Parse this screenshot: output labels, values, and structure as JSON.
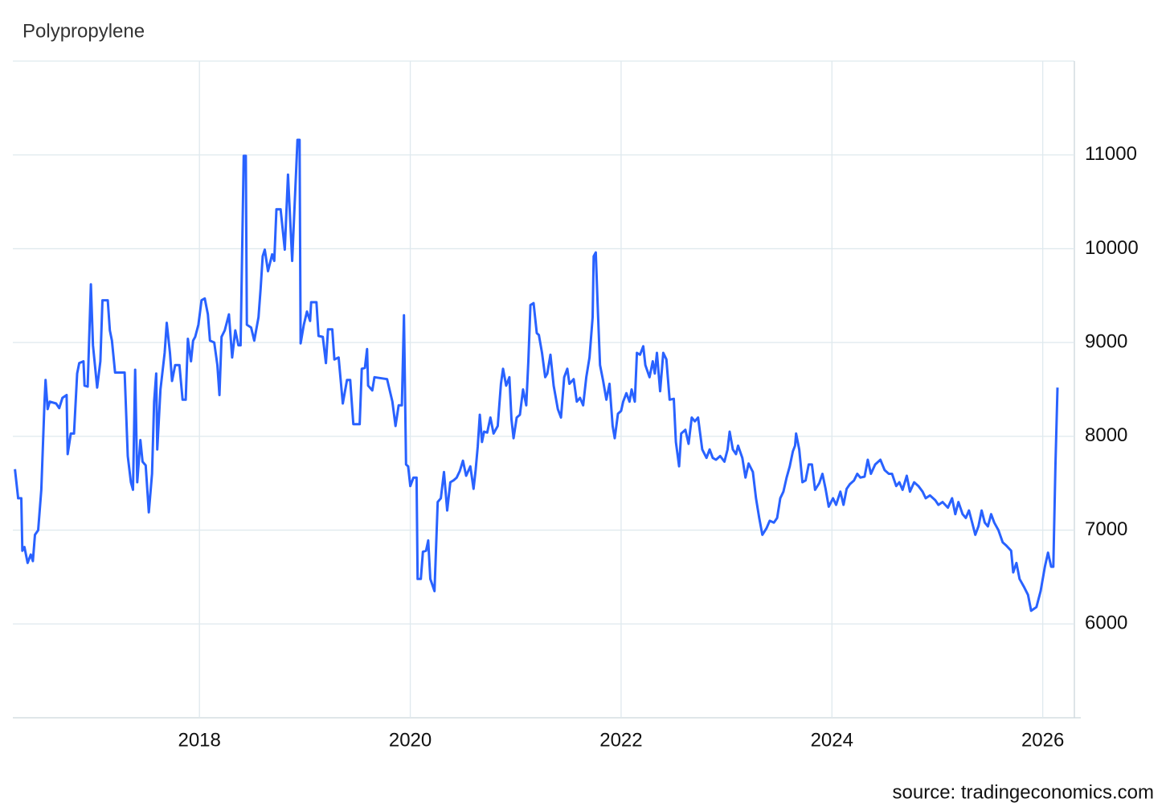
{
  "chart_data": {
    "type": "line",
    "title": "Polypropylene",
    "source": "source: tradingeconomics.com",
    "x": [
      2016.25,
      2016.28,
      2016.31,
      2016.32,
      2016.34,
      2016.37,
      2016.4,
      2016.42,
      2016.44,
      2016.47,
      2016.5,
      2016.53,
      2016.54,
      2016.56,
      2016.58,
      2016.64,
      2016.67,
      2016.7,
      2016.74,
      2016.75,
      2016.78,
      2016.81,
      2016.84,
      2016.86,
      2016.9,
      2016.91,
      2016.94,
      2016.97,
      2016.99,
      2017.03,
      2017.06,
      2017.08,
      2017.13,
      2017.15,
      2017.17,
      2017.2,
      2017.29,
      2017.32,
      2017.35,
      2017.37,
      2017.39,
      2017.41,
      2017.44,
      2017.46,
      2017.49,
      2017.52,
      2017.55,
      2017.57,
      2017.59,
      2017.6,
      2017.63,
      2017.67,
      2017.69,
      2017.72,
      2017.74,
      2017.77,
      2017.81,
      2017.84,
      2017.87,
      2017.89,
      2017.92,
      2017.94,
      2017.96,
      2017.99,
      2018.02,
      2018.05,
      2018.08,
      2018.1,
      2018.14,
      2018.17,
      2018.19,
      2018.21,
      2018.24,
      2018.28,
      2018.31,
      2018.34,
      2018.37,
      2018.39,
      2018.42,
      2018.44,
      2018.45,
      2018.49,
      2018.52,
      2018.56,
      2018.58,
      2018.6,
      2018.62,
      2018.65,
      2018.69,
      2018.71,
      2018.73,
      2018.77,
      2018.81,
      2018.84,
      2018.88,
      2018.93,
      2018.95,
      2018.96,
      2018.99,
      2019.02,
      2019.05,
      2019.06,
      2019.11,
      2019.13,
      2019.17,
      2019.2,
      2019.22,
      2019.26,
      2019.28,
      2019.32,
      2019.36,
      2019.4,
      2019.43,
      2019.46,
      2019.52,
      2019.54,
      2019.57,
      2019.59,
      2019.6,
      2019.64,
      2019.66,
      2019.78,
      2019.83,
      2019.86,
      2019.89,
      2019.92,
      2019.94,
      2019.96,
      2019.98,
      2020.0,
      2020.03,
      2020.06,
      2020.07,
      2020.1,
      2020.12,
      2020.15,
      2020.17,
      2020.19,
      2020.23,
      2020.26,
      2020.29,
      2020.32,
      2020.35,
      2020.38,
      2020.41,
      2020.44,
      2020.47,
      2020.5,
      2020.53,
      2020.57,
      2020.6,
      2020.62,
      2020.64,
      2020.66,
      2020.68,
      2020.7,
      2020.73,
      2020.76,
      2020.79,
      2020.83,
      2020.86,
      2020.88,
      2020.91,
      2020.94,
      2020.96,
      2020.98,
      2021.01,
      2021.04,
      2021.07,
      2021.1,
      2021.12,
      2021.14,
      2021.17,
      2021.2,
      2021.22,
      2021.25,
      2021.28,
      2021.3,
      2021.33,
      2021.36,
      2021.4,
      2021.43,
      2021.46,
      2021.49,
      2021.51,
      2021.55,
      2021.58,
      2021.61,
      2021.64,
      2021.67,
      2021.7,
      2021.73,
      2021.74,
      2021.76,
      2021.78,
      2021.8,
      2021.83,
      2021.86,
      2021.89,
      2021.92,
      2021.94,
      2021.97,
      2022.0,
      2022.02,
      2022.05,
      2022.08,
      2022.1,
      2022.13,
      2022.15,
      2022.18,
      2022.21,
      2022.23,
      2022.27,
      2022.3,
      2022.32,
      2022.34,
      2022.37,
      2022.4,
      2022.43,
      2022.46,
      2022.5,
      2022.52,
      2022.55,
      2022.57,
      2022.61,
      2022.64,
      2022.67,
      2022.7,
      2022.73,
      2022.77,
      2022.81,
      2022.84,
      2022.87,
      2022.9,
      2022.94,
      2022.98,
      2023.01,
      2023.03,
      2023.06,
      2023.09,
      2023.11,
      2023.15,
      2023.18,
      2023.21,
      2023.25,
      2023.28,
      2023.31,
      2023.34,
      2023.38,
      2023.41,
      2023.45,
      2023.48,
      2023.51,
      2023.54,
      2023.57,
      2023.6,
      2023.63,
      2023.65,
      2023.66,
      2023.69,
      2023.72,
      2023.75,
      2023.78,
      2023.81,
      2023.84,
      2023.88,
      2023.91,
      2023.94,
      2023.97,
      2024.01,
      2024.04,
      2024.08,
      2024.11,
      2024.14,
      2024.17,
      2024.21,
      2024.24,
      2024.27,
      2024.31,
      2024.34,
      2024.37,
      2024.41,
      2024.46,
      2024.5,
      2024.54,
      2024.57,
      2024.61,
      2024.64,
      2024.67,
      2024.71,
      2024.74,
      2024.78,
      2024.82,
      2024.86,
      2024.89,
      2024.93,
      2024.98,
      2025.01,
      2025.05,
      2025.1,
      2025.14,
      2025.17,
      2025.2,
      2025.24,
      2025.27,
      2025.3,
      2025.33,
      2025.36,
      2025.39,
      2025.42,
      2025.45,
      2025.48,
      2025.51,
      2025.54,
      2025.58,
      2025.62,
      2025.65,
      2025.7,
      2025.72,
      2025.75,
      2025.78,
      2025.82,
      2025.86,
      2025.89,
      2025.94,
      2025.98,
      2026.02,
      2026.05,
      2026.08,
      2026.1,
      2026.12,
      2026.14
    ],
    "series": [
      {
        "color": "#2962ff",
        "values": [
          7650,
          7340,
          7340,
          6780,
          6820,
          6650,
          6740,
          6670,
          6950,
          7000,
          7430,
          8370,
          8600,
          8290,
          8370,
          8350,
          8300,
          8410,
          8440,
          7810,
          8030,
          8030,
          8670,
          8780,
          8800,
          8540,
          8530,
          9620,
          8970,
          8520,
          8800,
          9450,
          9450,
          9130,
          9020,
          8680,
          8680,
          7790,
          7510,
          7430,
          8710,
          7510,
          7960,
          7730,
          7690,
          7190,
          7600,
          8370,
          8670,
          7860,
          8500,
          8890,
          9210,
          8890,
          8590,
          8760,
          8760,
          8390,
          8390,
          9040,
          8800,
          9020,
          9060,
          9190,
          9450,
          9470,
          9300,
          9020,
          9000,
          8760,
          8440,
          9060,
          9130,
          9300,
          8840,
          9130,
          8970,
          8970,
          10990,
          10990,
          9190,
          9160,
          9020,
          9270,
          9570,
          9920,
          9990,
          9760,
          9940,
          9870,
          10420,
          10420,
          9990,
          10790,
          9870,
          11160,
          11160,
          8990,
          9190,
          9330,
          9230,
          9430,
          9430,
          9070,
          9060,
          8780,
          9140,
          9140,
          8820,
          8840,
          8350,
          8600,
          8600,
          8130,
          8130,
          8720,
          8730,
          8930,
          8540,
          8490,
          8630,
          8610,
          8370,
          8110,
          8330,
          8330,
          9290,
          7700,
          7680,
          7470,
          7560,
          7560,
          6480,
          6480,
          6770,
          6780,
          6890,
          6480,
          6350,
          7300,
          7340,
          7620,
          7210,
          7510,
          7530,
          7560,
          7630,
          7740,
          7580,
          7680,
          7440,
          7640,
          7890,
          8230,
          7940,
          8050,
          8040,
          8200,
          8030,
          8110,
          8560,
          8720,
          8540,
          8630,
          8180,
          7980,
          8200,
          8230,
          8500,
          8330,
          8800,
          9400,
          9420,
          9100,
          9080,
          8890,
          8630,
          8670,
          8870,
          8540,
          8290,
          8200,
          8630,
          8720,
          8560,
          8610,
          8370,
          8410,
          8330,
          8630,
          8840,
          9270,
          9920,
          9960,
          9320,
          8760,
          8590,
          8390,
          8560,
          8110,
          7980,
          8240,
          8270,
          8370,
          8460,
          8370,
          8500,
          8370,
          8890,
          8870,
          8960,
          8760,
          8630,
          8800,
          8670,
          8890,
          8480,
          8890,
          8820,
          8390,
          8400,
          7940,
          7680,
          8030,
          8070,
          7920,
          8200,
          8160,
          8200,
          7860,
          7770,
          7860,
          7770,
          7750,
          7790,
          7730,
          7860,
          8050,
          7860,
          7810,
          7900,
          7770,
          7560,
          7710,
          7620,
          7340,
          7130,
          6950,
          7020,
          7100,
          7080,
          7130,
          7340,
          7410,
          7560,
          7680,
          7840,
          7900,
          8030,
          7860,
          7510,
          7530,
          7700,
          7700,
          7430,
          7500,
          7600,
          7440,
          7250,
          7340,
          7270,
          7410,
          7270,
          7440,
          7490,
          7530,
          7600,
          7560,
          7570,
          7750,
          7600,
          7700,
          7750,
          7640,
          7600,
          7600,
          7470,
          7510,
          7430,
          7580,
          7410,
          7510,
          7470,
          7410,
          7340,
          7370,
          7320,
          7270,
          7300,
          7240,
          7340,
          7170,
          7300,
          7170,
          7130,
          7210,
          7080,
          6950,
          7040,
          7210,
          7080,
          7040,
          7170,
          7080,
          7000,
          6870,
          6840,
          6780,
          6550,
          6650,
          6480,
          6400,
          6310,
          6140,
          6180,
          6350,
          6610,
          6760,
          6610,
          6610,
          7680,
          8520
        ]
      }
    ],
    "xlim": [
      2016.23,
      2026.3
    ],
    "xticks": [
      2018,
      2020,
      2022,
      2024,
      2026
    ],
    "ylim": [
      5000,
      12000
    ],
    "yticks": [
      6000,
      7000,
      8000,
      9000,
      10000,
      11000
    ],
    "grid": true
  }
}
